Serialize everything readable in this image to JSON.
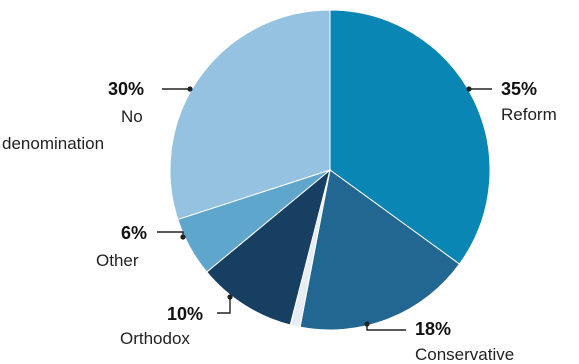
{
  "chart_data": {
    "type": "pie",
    "title": "",
    "start_angle_deg": 0,
    "direction": "clockwise",
    "slices": [
      {
        "label": "Reform",
        "percent_label": "35%",
        "value": 35,
        "color": "#0a86b4"
      },
      {
        "label": "Conservative",
        "percent_label": "18%",
        "value": 18,
        "color": "#226791"
      },
      {
        "label": "",
        "percent_label": "",
        "value": 1,
        "color": "#e6eef3"
      },
      {
        "label": "Orthodox",
        "percent_label": "10%",
        "value": 10,
        "color": "#173f62"
      },
      {
        "label": "Other",
        "percent_label": "6%",
        "value": 6,
        "color": "#5fa6cd"
      },
      {
        "label": "No denomination",
        "label_lines": [
          "No",
          "denomination"
        ],
        "percent_label": "30%",
        "value": 30,
        "color": "#94c2e0"
      }
    ]
  }
}
